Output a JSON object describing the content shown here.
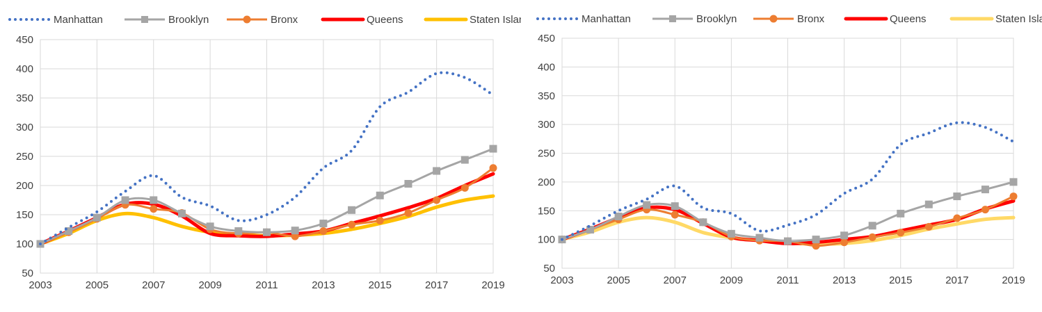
{
  "chart_data": [
    {
      "type": "line",
      "title": "",
      "xlabel": "",
      "ylabel": "",
      "ylim": [
        50,
        450
      ],
      "yticks": [
        50,
        100,
        150,
        200,
        250,
        300,
        350,
        400,
        450
      ],
      "xlim": [
        2003,
        2019
      ],
      "xticks": [
        2003,
        2005,
        2007,
        2009,
        2011,
        2013,
        2015,
        2017,
        2019
      ],
      "grid": true,
      "legend": "top",
      "x": [
        2003,
        2004,
        2005,
        2006,
        2007,
        2008,
        2009,
        2010,
        2011,
        2012,
        2013,
        2014,
        2015,
        2016,
        2017,
        2018,
        2019
      ],
      "series": [
        {
          "name": "Manhattan",
          "color": "#4472C4",
          "style": "dotted",
          "values": [
            100,
            128,
            155,
            190,
            217,
            180,
            165,
            140,
            150,
            180,
            230,
            260,
            335,
            360,
            392,
            385,
            355
          ]
        },
        {
          "name": "Brooklyn",
          "color": "#A5A5A5",
          "style": "line-square",
          "values": [
            100,
            122,
            145,
            175,
            175,
            152,
            130,
            122,
            120,
            123,
            135,
            158,
            183,
            203,
            225,
            244,
            263
          ]
        },
        {
          "name": "Bronx",
          "color": "#ED7D31",
          "style": "line-circle",
          "values": [
            100,
            120,
            143,
            167,
            160,
            153,
            125,
            118,
            120,
            113,
            122,
            133,
            140,
            153,
            175,
            196,
            230
          ]
        },
        {
          "name": "Queens",
          "color": "#FF0000",
          "style": "thick",
          "values": [
            100,
            122,
            145,
            168,
            168,
            148,
            118,
            114,
            113,
            117,
            122,
            135,
            148,
            162,
            178,
            200,
            220
          ]
        },
        {
          "name": "Staten Island",
          "color": "#FFC000",
          "style": "thick",
          "values": [
            100,
            118,
            140,
            152,
            145,
            130,
            120,
            116,
            114,
            115,
            118,
            125,
            135,
            147,
            163,
            175,
            182
          ]
        }
      ]
    },
    {
      "type": "line",
      "title": "",
      "xlabel": "",
      "ylabel": "",
      "ylim": [
        50,
        450
      ],
      "yticks": [
        50,
        100,
        150,
        200,
        250,
        300,
        350,
        400,
        450
      ],
      "xlim": [
        2003,
        2019
      ],
      "xticks": [
        2003,
        2005,
        2007,
        2009,
        2011,
        2013,
        2015,
        2017,
        2019
      ],
      "grid": true,
      "legend": "top",
      "x": [
        2003,
        2004,
        2005,
        2006,
        2007,
        2008,
        2009,
        2010,
        2011,
        2012,
        2013,
        2014,
        2015,
        2016,
        2017,
        2018,
        2019
      ],
      "series": [
        {
          "name": "Manhattan",
          "color": "#4472C4",
          "style": "dotted",
          "values": [
            100,
            124,
            150,
            170,
            193,
            155,
            145,
            115,
            125,
            143,
            180,
            205,
            265,
            285,
            303,
            295,
            270
          ]
        },
        {
          "name": "Brooklyn",
          "color": "#A5A5A5",
          "style": "line-square",
          "values": [
            100,
            117,
            140,
            160,
            158,
            130,
            110,
            103,
            97,
            100,
            107,
            124,
            145,
            161,
            175,
            187,
            200
          ]
        },
        {
          "name": "Bronx",
          "color": "#ED7D31",
          "style": "line-circle",
          "values": [
            100,
            117,
            135,
            152,
            143,
            130,
            105,
            98,
            97,
            89,
            95,
            104,
            112,
            122,
            137,
            152,
            175
          ]
        },
        {
          "name": "Queens",
          "color": "#FF0000",
          "style": "thick",
          "values": [
            100,
            118,
            138,
            155,
            152,
            128,
            104,
            98,
            93,
            95,
            100,
            105,
            115,
            125,
            135,
            153,
            167
          ]
        },
        {
          "name": "Staten Island",
          "color": "#FFD966",
          "style": "thick",
          "values": [
            100,
            113,
            130,
            138,
            130,
            112,
            103,
            98,
            94,
            92,
            93,
            98,
            107,
            118,
            127,
            135,
            138
          ]
        }
      ]
    }
  ]
}
